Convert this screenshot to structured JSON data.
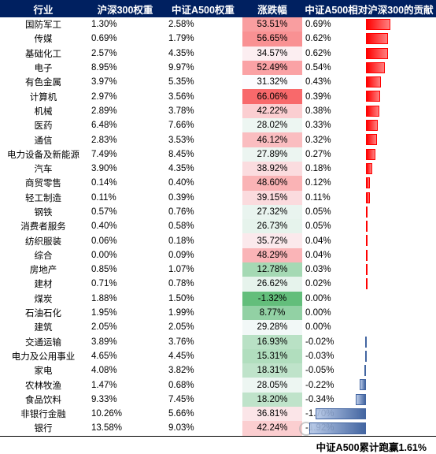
{
  "headers": [
    "行业",
    "沪深300权重",
    "中证A500权重",
    "涨跌幅",
    "中证A500相对沪深300的贡献"
  ],
  "rows": [
    {
      "industry": "国防军工",
      "hs300": "1.30%",
      "a500": "2.58%",
      "change": "53.51%",
      "contrib": "0.69%"
    },
    {
      "industry": "传媒",
      "hs300": "0.69%",
      "a500": "1.79%",
      "change": "56.65%",
      "contrib": "0.62%"
    },
    {
      "industry": "基础化工",
      "hs300": "2.57%",
      "a500": "4.35%",
      "change": "34.57%",
      "contrib": "0.62%"
    },
    {
      "industry": "电子",
      "hs300": "8.95%",
      "a500": "9.97%",
      "change": "52.49%",
      "contrib": "0.54%"
    },
    {
      "industry": "有色金属",
      "hs300": "3.97%",
      "a500": "5.35%",
      "change": "31.32%",
      "contrib": "0.43%"
    },
    {
      "industry": "计算机",
      "hs300": "2.97%",
      "a500": "3.56%",
      "change": "66.06%",
      "contrib": "0.39%"
    },
    {
      "industry": "机械",
      "hs300": "2.89%",
      "a500": "3.78%",
      "change": "42.22%",
      "contrib": "0.38%"
    },
    {
      "industry": "医药",
      "hs300": "6.48%",
      "a500": "7.66%",
      "change": "28.02%",
      "contrib": "0.33%"
    },
    {
      "industry": "通信",
      "hs300": "2.83%",
      "a500": "3.53%",
      "change": "46.12%",
      "contrib": "0.32%"
    },
    {
      "industry": "电力设备及新能源",
      "hs300": "7.49%",
      "a500": "8.45%",
      "change": "27.89%",
      "contrib": "0.27%"
    },
    {
      "industry": "汽车",
      "hs300": "3.90%",
      "a500": "4.35%",
      "change": "38.92%",
      "contrib": "0.18%"
    },
    {
      "industry": "商贸零售",
      "hs300": "0.14%",
      "a500": "0.40%",
      "change": "48.60%",
      "contrib": "0.12%"
    },
    {
      "industry": "轻工制造",
      "hs300": "0.11%",
      "a500": "0.39%",
      "change": "39.15%",
      "contrib": "0.11%"
    },
    {
      "industry": "钢铁",
      "hs300": "0.57%",
      "a500": "0.76%",
      "change": "27.32%",
      "contrib": "0.05%"
    },
    {
      "industry": "消费者服务",
      "hs300": "0.40%",
      "a500": "0.58%",
      "change": "26.73%",
      "contrib": "0.05%"
    },
    {
      "industry": "纺织服装",
      "hs300": "0.06%",
      "a500": "0.18%",
      "change": "35.72%",
      "contrib": "0.04%"
    },
    {
      "industry": "综合",
      "hs300": "0.00%",
      "a500": "0.09%",
      "change": "48.29%",
      "contrib": "0.04%"
    },
    {
      "industry": "房地产",
      "hs300": "0.85%",
      "a500": "1.07%",
      "change": "12.78%",
      "contrib": "0.03%"
    },
    {
      "industry": "建材",
      "hs300": "0.71%",
      "a500": "0.78%",
      "change": "26.62%",
      "contrib": "0.02%"
    },
    {
      "industry": "煤炭",
      "hs300": "1.88%",
      "a500": "1.50%",
      "change": "-1.32%",
      "contrib": "0.00%"
    },
    {
      "industry": "石油石化",
      "hs300": "1.95%",
      "a500": "1.99%",
      "change": "8.77%",
      "contrib": "0.00%"
    },
    {
      "industry": "建筑",
      "hs300": "2.05%",
      "a500": "2.05%",
      "change": "29.28%",
      "contrib": "0.00%"
    },
    {
      "industry": "交通运输",
      "hs300": "3.89%",
      "a500": "3.76%",
      "change": "16.93%",
      "contrib": "-0.02%"
    },
    {
      "industry": "电力及公用事业",
      "hs300": "4.65%",
      "a500": "4.45%",
      "change": "15.31%",
      "contrib": "-0.03%"
    },
    {
      "industry": "家电",
      "hs300": "4.08%",
      "a500": "3.82%",
      "change": "18.31%",
      "contrib": "-0.05%"
    },
    {
      "industry": "农林牧渔",
      "hs300": "1.47%",
      "a500": "0.68%",
      "change": "28.05%",
      "contrib": "-0.22%"
    },
    {
      "industry": "食品饮料",
      "hs300": "9.33%",
      "a500": "7.45%",
      "change": "18.20%",
      "contrib": "-0.34%"
    },
    {
      "industry": "非银行金融",
      "hs300": "10.26%",
      "a500": "5.66%",
      "change": "36.81%",
      "contrib": "-1.70%"
    },
    {
      "industry": "银行",
      "hs300": "13.58%",
      "a500": "9.03%",
      "change": "42.24%",
      "contrib": "-1.92%"
    }
  ],
  "footer": "中证A500累计跑赢1.61%",
  "colors": {
    "header_bg": "#002060",
    "pos_bar": "#ff0000",
    "neg_bar": "#2f5597",
    "heat_high": "#f8696b",
    "heat_mid": "#fcfcff",
    "heat_low": "#63be7b"
  }
}
